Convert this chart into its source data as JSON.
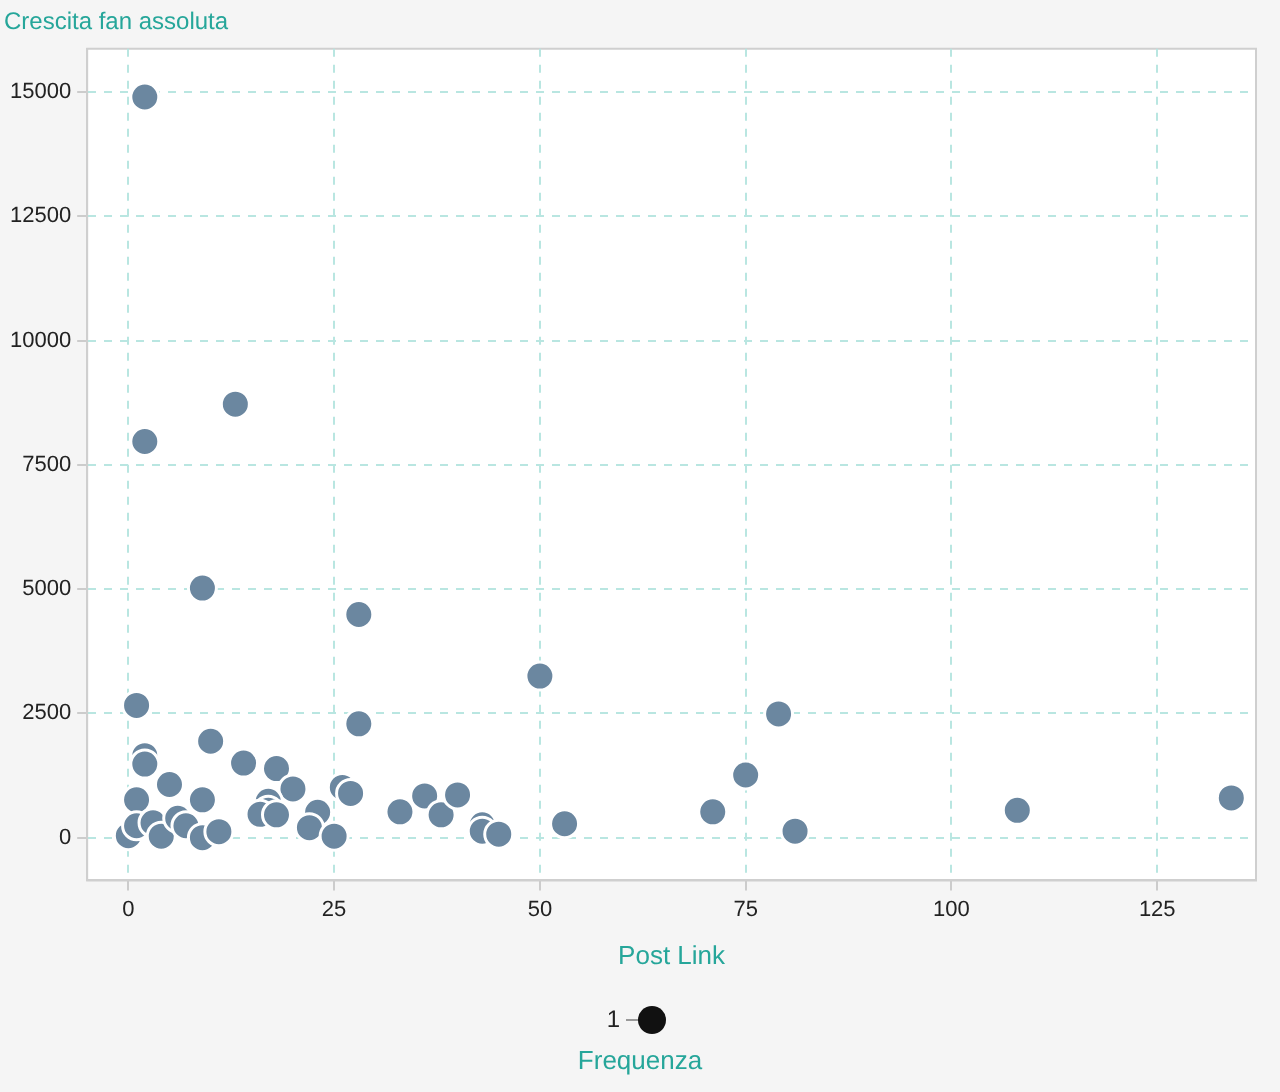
{
  "chart_data": {
    "type": "bubble",
    "title": "Crescita fan assoluta",
    "xlabel": "Post Link",
    "legend_title": "Frequenza",
    "grid": true,
    "marker": "circle",
    "xlim": [
      -5,
      137
    ],
    "xticks": [
      0,
      25,
      50,
      75,
      100,
      125
    ],
    "ylim": [
      -860,
      15870
    ],
    "yticks": [
      0,
      2500,
      5000,
      7500,
      10000,
      12500,
      15000
    ],
    "size_legend": [
      1
    ],
    "series": [
      {
        "color": "#6b87a0",
        "x": [
          2,
          13,
          2,
          9,
          28,
          50,
          1,
          79,
          28,
          2,
          2,
          10,
          14,
          18,
          75,
          5,
          1,
          9,
          20,
          26,
          27,
          17,
          17,
          16,
          18,
          23,
          22,
          25,
          33,
          36,
          38,
          40,
          43,
          43,
          45,
          53,
          0,
          1,
          3,
          4,
          6,
          7,
          9,
          11,
          71,
          81,
          108,
          134
        ],
        "values": [
          14900,
          8720,
          7970,
          5020,
          4490,
          3250,
          2660,
          2490,
          2290,
          1650,
          1480,
          1940,
          1500,
          1390,
          1260,
          1070,
          760,
          760,
          980,
          1010,
          890,
          730,
          550,
          470,
          460,
          510,
          200,
          30,
          520,
          840,
          460,
          860,
          260,
          130,
          70,
          280,
          40,
          240,
          300,
          30,
          390,
          240,
          0,
          120,
          520,
          130,
          550,
          800
        ],
        "sizes": [
          1,
          1,
          1,
          1,
          1,
          1,
          1,
          1,
          1,
          1,
          1,
          1,
          1,
          1,
          1,
          1,
          1,
          1,
          1,
          1,
          1,
          1,
          1,
          1,
          1,
          1,
          1,
          1,
          1,
          1,
          1,
          1,
          1,
          1,
          1,
          1,
          1,
          1,
          1,
          1,
          1,
          1,
          1,
          1,
          1,
          1,
          1,
          1
        ]
      }
    ]
  }
}
